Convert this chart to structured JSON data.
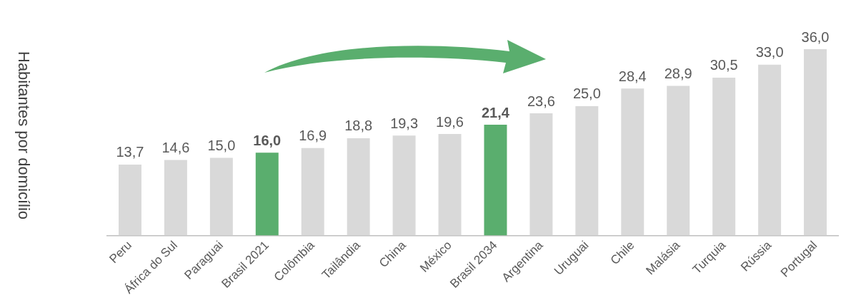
{
  "chart_data": {
    "type": "bar",
    "ylabel": "Habitantes por domicílio",
    "categories": [
      "Peru",
      "África do Sul",
      "Paraguai",
      "Brasil 2021",
      "Colômbia",
      "Tailândia",
      "China",
      "México",
      "Brasil 2034",
      "Argentina",
      "Uruguai",
      "Chile",
      "Malásia",
      "Turquia",
      "Rússia",
      "Portugal"
    ],
    "values": [
      13.7,
      14.6,
      15.0,
      16.0,
      16.9,
      18.8,
      19.3,
      19.6,
      21.4,
      23.6,
      25.0,
      28.4,
      28.9,
      30.5,
      33.0,
      36.0
    ],
    "colors": [
      "#d9d9d9",
      "#d9d9d9",
      "#d9d9d9",
      "#5aae6e",
      "#d9d9d9",
      "#d9d9d9",
      "#d9d9d9",
      "#d9d9d9",
      "#5aae6e",
      "#d9d9d9",
      "#d9d9d9",
      "#d9d9d9",
      "#d9d9d9",
      "#d9d9d9",
      "#d9d9d9",
      "#d9d9d9"
    ],
    "value_labels": [
      "13,7",
      "14,6",
      "15,0",
      "16,0",
      "16,9",
      "18,8",
      "19,3",
      "19,6",
      "21,4",
      "23,6",
      "25,0",
      "28,4",
      "28,9",
      "30,5",
      "33,0",
      "36,0"
    ],
    "grid": false,
    "legend": false
  }
}
